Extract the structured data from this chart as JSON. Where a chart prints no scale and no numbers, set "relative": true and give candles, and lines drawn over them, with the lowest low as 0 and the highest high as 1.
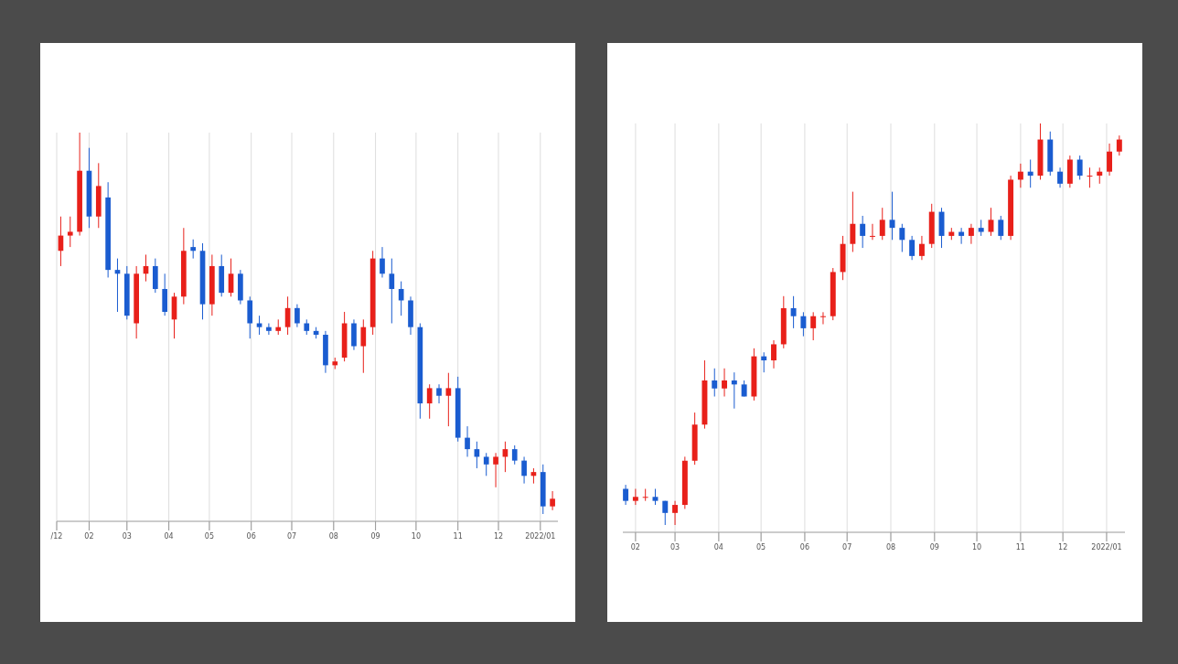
{
  "chart_data": [
    {
      "type": "candlestick",
      "relative": true,
      "grid": "x",
      "xlim": [
        "2021-01-08",
        "2022-01-14"
      ],
      "xticks": [
        {
          "value": "2021-01-08",
          "label": "/12"
        },
        {
          "value": "2021-02-01",
          "label": "02"
        },
        {
          "value": "2021-03-01",
          "label": "03"
        },
        {
          "value": "2021-04-01",
          "label": "04"
        },
        {
          "value": "2021-05-01",
          "label": "05"
        },
        {
          "value": "2021-06-01",
          "label": "06"
        },
        {
          "value": "2021-07-01",
          "label": "07"
        },
        {
          "value": "2021-08-01",
          "label": "08"
        },
        {
          "value": "2021-09-01",
          "label": "09"
        },
        {
          "value": "2021-10-01",
          "label": "10"
        },
        {
          "value": "2021-11-01",
          "label": "11"
        },
        {
          "value": "2021-12-01",
          "label": "12"
        },
        {
          "value": "2022-01-01",
          "label": "2022/01"
        }
      ],
      "x": [
        "2021-01-11",
        "2021-01-18",
        "2021-01-25",
        "2021-02-01",
        "2021-02-08",
        "2021-02-15",
        "2021-02-22",
        "2021-03-01",
        "2021-03-08",
        "2021-03-15",
        "2021-03-22",
        "2021-03-29",
        "2021-04-05",
        "2021-04-12",
        "2021-04-19",
        "2021-04-26",
        "2021-05-03",
        "2021-05-10",
        "2021-05-17",
        "2021-05-24",
        "2021-05-31",
        "2021-06-07",
        "2021-06-14",
        "2021-06-21",
        "2021-06-28",
        "2021-07-05",
        "2021-07-12",
        "2021-07-19",
        "2021-07-26",
        "2021-08-02",
        "2021-08-09",
        "2021-08-16",
        "2021-08-23",
        "2021-08-30",
        "2021-09-06",
        "2021-09-13",
        "2021-09-20",
        "2021-09-27",
        "2021-10-04",
        "2021-10-11",
        "2021-10-18",
        "2021-10-25",
        "2021-11-01",
        "2021-11-08",
        "2021-11-15",
        "2021-11-22",
        "2021-11-29",
        "2021-12-06",
        "2021-12-13",
        "2021-12-20",
        "2021-12-27",
        "2022-01-03",
        "2022-01-10"
      ],
      "ohlc": [
        [
          0.69,
          0.78,
          0.65,
          0.73
        ],
        [
          0.73,
          0.78,
          0.7,
          0.74
        ],
        [
          0.74,
          1.0,
          0.73,
          0.9
        ],
        [
          0.9,
          0.96,
          0.75,
          0.78
        ],
        [
          0.78,
          0.92,
          0.75,
          0.86
        ],
        [
          0.83,
          0.87,
          0.62,
          0.64
        ],
        [
          0.64,
          0.67,
          0.53,
          0.63
        ],
        [
          0.63,
          0.65,
          0.51,
          0.52
        ],
        [
          0.5,
          0.65,
          0.46,
          0.63
        ],
        [
          0.63,
          0.68,
          0.61,
          0.65
        ],
        [
          0.65,
          0.67,
          0.58,
          0.59
        ],
        [
          0.59,
          0.63,
          0.52,
          0.53
        ],
        [
          0.51,
          0.58,
          0.46,
          0.57
        ],
        [
          0.57,
          0.75,
          0.55,
          0.69
        ],
        [
          0.7,
          0.72,
          0.67,
          0.69
        ],
        [
          0.69,
          0.71,
          0.51,
          0.55
        ],
        [
          0.55,
          0.68,
          0.52,
          0.65
        ],
        [
          0.65,
          0.68,
          0.57,
          0.58
        ],
        [
          0.58,
          0.67,
          0.57,
          0.63
        ],
        [
          0.63,
          0.64,
          0.55,
          0.56
        ],
        [
          0.56,
          0.57,
          0.46,
          0.5
        ],
        [
          0.5,
          0.52,
          0.47,
          0.49
        ],
        [
          0.49,
          0.5,
          0.47,
          0.48
        ],
        [
          0.48,
          0.51,
          0.47,
          0.49
        ],
        [
          0.49,
          0.57,
          0.47,
          0.54
        ],
        [
          0.54,
          0.55,
          0.49,
          0.5
        ],
        [
          0.5,
          0.51,
          0.47,
          0.48
        ],
        [
          0.48,
          0.49,
          0.46,
          0.47
        ],
        [
          0.47,
          0.48,
          0.37,
          0.39
        ],
        [
          0.39,
          0.41,
          0.38,
          0.4
        ],
        [
          0.41,
          0.53,
          0.4,
          0.5
        ],
        [
          0.5,
          0.51,
          0.43,
          0.44
        ],
        [
          0.44,
          0.51,
          0.37,
          0.49
        ],
        [
          0.49,
          0.69,
          0.47,
          0.67
        ],
        [
          0.67,
          0.7,
          0.62,
          0.63
        ],
        [
          0.63,
          0.67,
          0.5,
          0.59
        ],
        [
          0.59,
          0.61,
          0.52,
          0.56
        ],
        [
          0.56,
          0.57,
          0.47,
          0.49
        ],
        [
          0.49,
          0.5,
          0.25,
          0.29
        ],
        [
          0.29,
          0.34,
          0.25,
          0.33
        ],
        [
          0.33,
          0.34,
          0.29,
          0.31
        ],
        [
          0.31,
          0.37,
          0.23,
          0.33
        ],
        [
          0.33,
          0.36,
          0.19,
          0.2
        ],
        [
          0.2,
          0.23,
          0.15,
          0.17
        ],
        [
          0.17,
          0.19,
          0.12,
          0.15
        ],
        [
          0.15,
          0.16,
          0.1,
          0.13
        ],
        [
          0.13,
          0.16,
          0.07,
          0.15
        ],
        [
          0.15,
          0.19,
          0.11,
          0.17
        ],
        [
          0.17,
          0.18,
          0.13,
          0.14
        ],
        [
          0.14,
          0.15,
          0.08,
          0.1
        ],
        [
          0.1,
          0.12,
          0.08,
          0.11
        ],
        [
          0.11,
          0.13,
          0.0,
          0.02
        ],
        [
          0.02,
          0.06,
          0.01,
          0.04
        ]
      ]
    },
    {
      "type": "candlestick",
      "relative": true,
      "grid": "x",
      "xlim": [
        "2021-01-23",
        "2022-01-14"
      ],
      "xticks": [
        {
          "value": "2021-02-01",
          "label": "02"
        },
        {
          "value": "2021-03-01",
          "label": "03"
        },
        {
          "value": "2021-04-01",
          "label": "04"
        },
        {
          "value": "2021-05-01",
          "label": "05"
        },
        {
          "value": "2021-06-01",
          "label": "06"
        },
        {
          "value": "2021-07-01",
          "label": "07"
        },
        {
          "value": "2021-08-01",
          "label": "08"
        },
        {
          "value": "2021-09-01",
          "label": "09"
        },
        {
          "value": "2021-10-01",
          "label": "10"
        },
        {
          "value": "2021-11-01",
          "label": "11"
        },
        {
          "value": "2021-12-01",
          "label": "12"
        },
        {
          "value": "2022-01-01",
          "label": "2022/01"
        }
      ],
      "x": [
        "2021-01-25",
        "2021-02-01",
        "2021-02-08",
        "2021-02-15",
        "2021-02-22",
        "2021-03-01",
        "2021-03-08",
        "2021-03-15",
        "2021-03-22",
        "2021-03-29",
        "2021-04-05",
        "2021-04-12",
        "2021-04-19",
        "2021-04-26",
        "2021-05-03",
        "2021-05-10",
        "2021-05-17",
        "2021-05-24",
        "2021-05-31",
        "2021-06-07",
        "2021-06-14",
        "2021-06-21",
        "2021-06-28",
        "2021-07-05",
        "2021-07-12",
        "2021-07-19",
        "2021-07-26",
        "2021-08-02",
        "2021-08-09",
        "2021-08-16",
        "2021-08-23",
        "2021-08-30",
        "2021-09-06",
        "2021-09-13",
        "2021-09-20",
        "2021-09-27",
        "2021-10-04",
        "2021-10-11",
        "2021-10-18",
        "2021-10-25",
        "2021-11-01",
        "2021-11-08",
        "2021-11-15",
        "2021-11-22",
        "2021-11-29",
        "2021-12-06",
        "2021-12-13",
        "2021-12-20",
        "2021-12-27",
        "2022-01-03",
        "2022-01-10"
      ],
      "ohlc": [
        [
          0.09,
          0.1,
          0.05,
          0.06
        ],
        [
          0.06,
          0.09,
          0.05,
          0.07
        ],
        [
          0.07,
          0.09,
          0.06,
          0.07
        ],
        [
          0.07,
          0.09,
          0.05,
          0.06
        ],
        [
          0.06,
          0.06,
          0.0,
          0.03
        ],
        [
          0.03,
          0.06,
          0.0,
          0.05
        ],
        [
          0.05,
          0.17,
          0.04,
          0.16
        ],
        [
          0.16,
          0.28,
          0.15,
          0.25
        ],
        [
          0.25,
          0.41,
          0.24,
          0.36
        ],
        [
          0.36,
          0.39,
          0.32,
          0.34
        ],
        [
          0.34,
          0.39,
          0.32,
          0.36
        ],
        [
          0.36,
          0.38,
          0.29,
          0.35
        ],
        [
          0.35,
          0.36,
          0.32,
          0.32
        ],
        [
          0.32,
          0.44,
          0.31,
          0.42
        ],
        [
          0.42,
          0.43,
          0.38,
          0.41
        ],
        [
          0.41,
          0.46,
          0.39,
          0.45
        ],
        [
          0.45,
          0.57,
          0.44,
          0.54
        ],
        [
          0.54,
          0.57,
          0.49,
          0.52
        ],
        [
          0.52,
          0.53,
          0.47,
          0.49
        ],
        [
          0.49,
          0.53,
          0.46,
          0.52
        ],
        [
          0.52,
          0.53,
          0.5,
          0.52
        ],
        [
          0.52,
          0.64,
          0.51,
          0.63
        ],
        [
          0.63,
          0.72,
          0.61,
          0.7
        ],
        [
          0.7,
          0.83,
          0.68,
          0.75
        ],
        [
          0.75,
          0.77,
          0.69,
          0.72
        ],
        [
          0.72,
          0.75,
          0.71,
          0.72
        ],
        [
          0.72,
          0.79,
          0.71,
          0.76
        ],
        [
          0.76,
          0.83,
          0.71,
          0.74
        ],
        [
          0.74,
          0.75,
          0.68,
          0.71
        ],
        [
          0.71,
          0.72,
          0.66,
          0.67
        ],
        [
          0.67,
          0.72,
          0.66,
          0.7
        ],
        [
          0.7,
          0.8,
          0.69,
          0.78
        ],
        [
          0.78,
          0.79,
          0.69,
          0.72
        ],
        [
          0.72,
          0.74,
          0.71,
          0.73
        ],
        [
          0.73,
          0.74,
          0.7,
          0.72
        ],
        [
          0.72,
          0.75,
          0.7,
          0.74
        ],
        [
          0.74,
          0.76,
          0.72,
          0.73
        ],
        [
          0.73,
          0.79,
          0.72,
          0.76
        ],
        [
          0.76,
          0.77,
          0.71,
          0.72
        ],
        [
          0.72,
          0.87,
          0.71,
          0.86
        ],
        [
          0.86,
          0.9,
          0.84,
          0.88
        ],
        [
          0.88,
          0.91,
          0.84,
          0.87
        ],
        [
          0.87,
          1.0,
          0.86,
          0.96
        ],
        [
          0.96,
          0.98,
          0.87,
          0.88
        ],
        [
          0.88,
          0.89,
          0.84,
          0.85
        ],
        [
          0.85,
          0.92,
          0.84,
          0.91
        ],
        [
          0.91,
          0.92,
          0.86,
          0.87
        ],
        [
          0.87,
          0.89,
          0.84,
          0.87
        ],
        [
          0.87,
          0.89,
          0.85,
          0.88
        ],
        [
          0.88,
          0.95,
          0.87,
          0.93
        ],
        [
          0.93,
          0.97,
          0.92,
          0.96
        ]
      ]
    }
  ]
}
